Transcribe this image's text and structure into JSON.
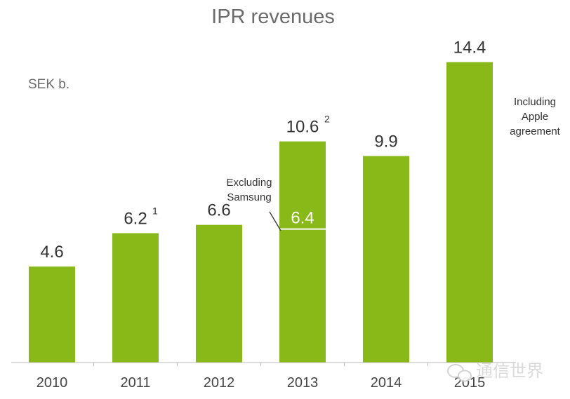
{
  "chart_data": {
    "type": "bar",
    "title": "IPR revenues",
    "unit_label": "SEK b.",
    "categories": [
      "2010",
      "2011",
      "2012",
      "2013",
      "2014",
      "2015"
    ],
    "values": [
      4.6,
      6.2,
      6.6,
      10.6,
      9.9,
      14.4
    ],
    "value_labels": [
      "4.6",
      "6.2",
      "6.6",
      "10.6",
      "9.9",
      "14.4"
    ],
    "footnotes": [
      "",
      "1",
      "",
      "2",
      "",
      ""
    ],
    "ylim": [
      0,
      16
    ],
    "bar_color": "#88b918",
    "annotations": {
      "excluding_samsung": {
        "category": "2013",
        "value": 6.4,
        "label": "6.4",
        "note_lines": [
          "Excluding",
          "Samsung"
        ]
      },
      "including_apple": {
        "category": "2015",
        "note_lines": [
          "Including",
          "Apple",
          "agreement"
        ]
      }
    }
  },
  "watermark": {
    "text": "通信世界"
  }
}
